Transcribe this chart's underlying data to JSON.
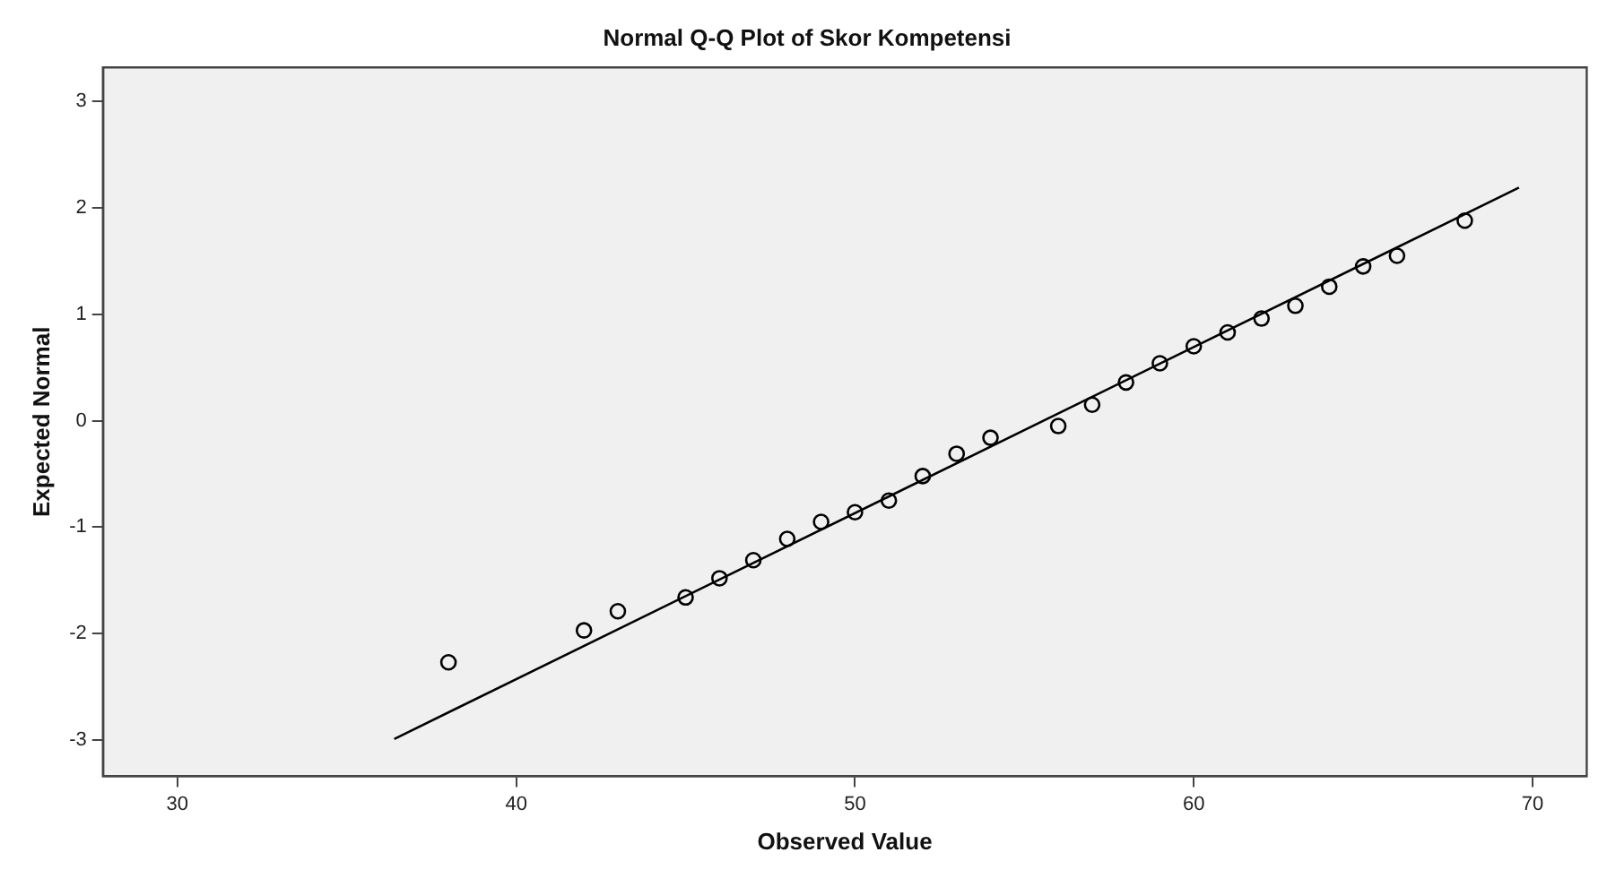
{
  "chart_data": {
    "type": "scatter",
    "title": "Normal Q-Q Plot of Skor Kompetensi",
    "xlabel": "Observed Value",
    "ylabel": "Expected Normal",
    "xlim": [
      27.8,
      71.6
    ],
    "xticks": [
      30,
      40,
      50,
      60,
      70
    ],
    "ylim": [
      -3.34,
      3.32
    ],
    "yticks": [
      -3,
      -2,
      -1,
      0,
      1,
      2,
      3
    ],
    "grid": false,
    "legend": false,
    "series": [
      {
        "type": "scatter",
        "marker": "circle",
        "color": "#000000",
        "x": [
          38,
          42,
          43,
          45,
          46,
          47,
          48,
          49,
          50,
          51,
          52,
          53,
          54,
          56,
          57,
          58,
          59,
          60,
          61,
          62,
          63,
          64,
          65,
          66,
          68
        ],
        "values": [
          -2.27,
          -1.97,
          -1.79,
          -1.66,
          -1.48,
          -1.31,
          -1.11,
          -0.95,
          -0.86,
          -0.75,
          -0.52,
          -0.31,
          -0.16,
          -0.05,
          0.15,
          0.36,
          0.54,
          0.7,
          0.83,
          0.96,
          1.08,
          1.26,
          1.45,
          1.55,
          1.88
        ]
      },
      {
        "type": "line",
        "marker": "none",
        "line_style": "solid",
        "color": "#000000",
        "x": [
          36.4,
          69.6
        ],
        "values": [
          -2.99,
          2.19
        ]
      }
    ]
  }
}
